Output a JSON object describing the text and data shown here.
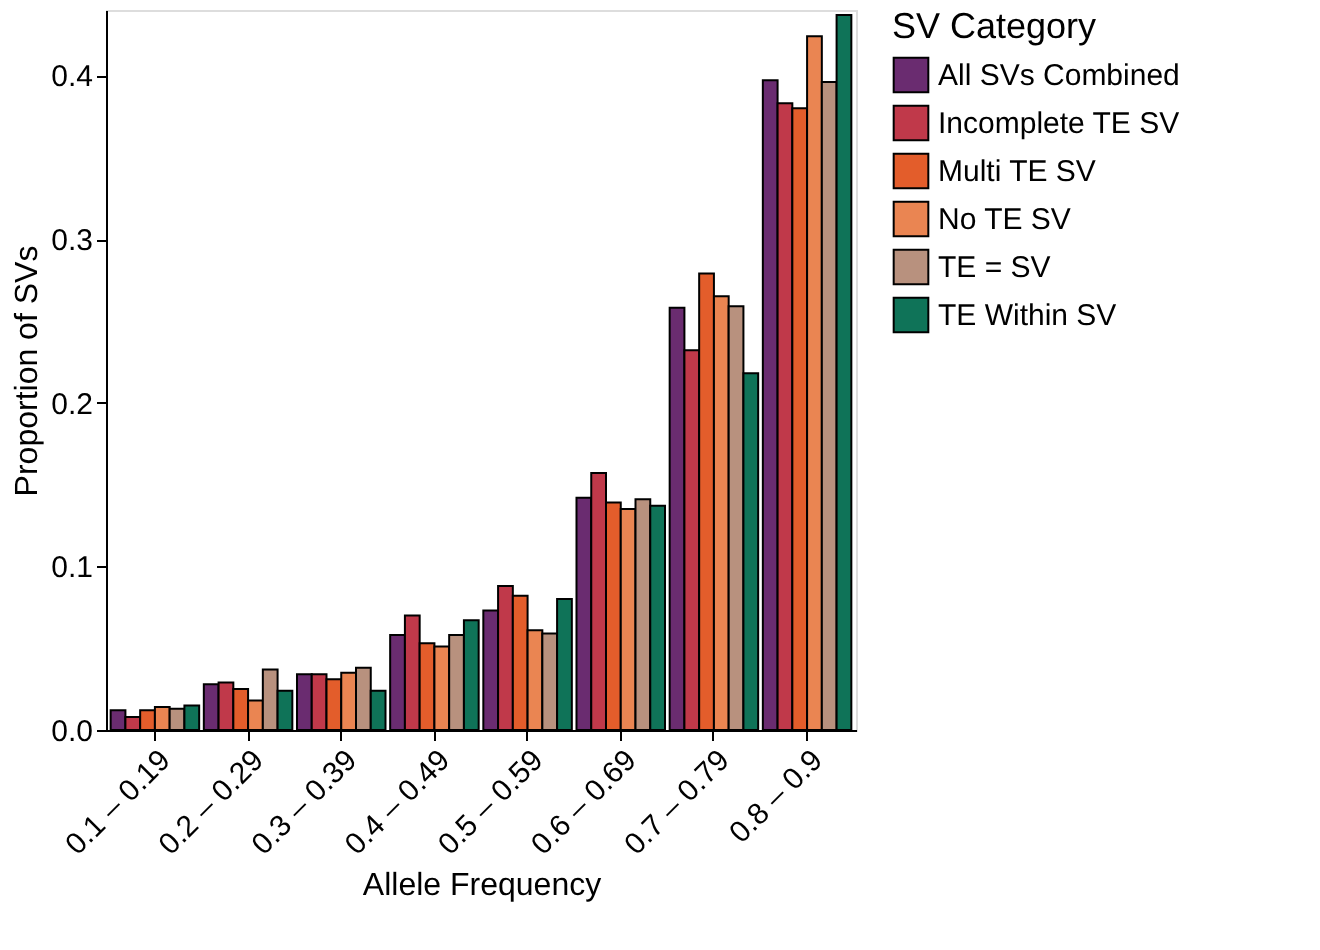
{
  "chart_data": {
    "type": "bar",
    "xlabel": "Allele Frequency",
    "ylabel": "Proportion of SVs",
    "legend_title": "SV Category",
    "categories": [
      "0.1 – 0.19",
      "0.2 – 0.29",
      "0.3 – 0.39",
      "0.4 – 0.49",
      "0.5 – 0.59",
      "0.6 – 0.69",
      "0.7 – 0.79",
      "0.8 – 0.9"
    ],
    "series": [
      {
        "name": "All SVs Combined",
        "color": "#6a2c70",
        "values": [
          0.012,
          0.028,
          0.034,
          0.058,
          0.073,
          0.142,
          0.258,
          0.397
        ]
      },
      {
        "name": "Incomplete TE SV",
        "color": "#c0394a",
        "values": [
          0.008,
          0.029,
          0.034,
          0.07,
          0.088,
          0.157,
          0.232,
          0.383
        ]
      },
      {
        "name": "Multi TE SV",
        "color": "#e35d2b",
        "values": [
          0.012,
          0.025,
          0.031,
          0.053,
          0.082,
          0.139,
          0.279,
          0.38
        ]
      },
      {
        "name": "No TE SV",
        "color": "#ea8552",
        "values": [
          0.014,
          0.018,
          0.035,
          0.051,
          0.061,
          0.135,
          0.265,
          0.424
        ]
      },
      {
        "name": "TE = SV",
        "color": "#b8917e",
        "values": [
          0.013,
          0.037,
          0.038,
          0.058,
          0.059,
          0.141,
          0.259,
          0.396
        ]
      },
      {
        "name": "TE Within SV",
        "color": "#0f7358",
        "values": [
          0.015,
          0.024,
          0.024,
          0.067,
          0.08,
          0.137,
          0.218,
          0.437
        ]
      }
    ],
    "ylim": [
      0,
      0.44
    ],
    "yticks": [
      {
        "value": 0,
        "label": "0.0"
      },
      0.1,
      0.2,
      0.3,
      0.4
    ],
    "grid": false,
    "legend": "right"
  }
}
